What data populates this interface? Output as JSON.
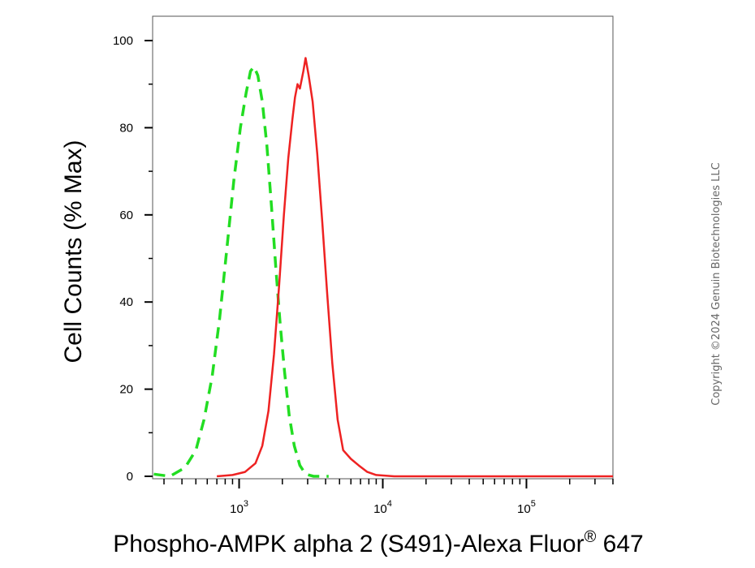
{
  "chart_data": {
    "type": "line",
    "xlabel": "Phospho-AMPK alpha 2 (S491)-Alexa Fluor",
    "xlabel_superscript": "®",
    "xlabel_suffix": " 647",
    "ylabel": "Cell Counts (% Max)",
    "x_scale": "log",
    "xlim": [
      250,
      400000
    ],
    "ylim": [
      0,
      100
    ],
    "y_ticks": [
      0,
      20,
      40,
      60,
      80,
      100
    ],
    "x_major_ticks": [
      {
        "value": 1000,
        "base": "10",
        "exp": "3"
      },
      {
        "value": 10000,
        "base": "10",
        "exp": "4"
      },
      {
        "value": 100000,
        "base": "10",
        "exp": "5"
      }
    ],
    "grid": false,
    "series": [
      {
        "style": "dashed",
        "color": "#22dd22",
        "points": [
          [
            255,
            0.5
          ],
          [
            330,
            0
          ],
          [
            420,
            2
          ],
          [
            500,
            6
          ],
          [
            570,
            13
          ],
          [
            650,
            23
          ],
          [
            730,
            36
          ],
          [
            820,
            52
          ],
          [
            920,
            68
          ],
          [
            1020,
            80
          ],
          [
            1120,
            88
          ],
          [
            1200,
            93
          ],
          [
            1270,
            94
          ],
          [
            1350,
            92
          ],
          [
            1450,
            86
          ],
          [
            1560,
            76
          ],
          [
            1680,
            62
          ],
          [
            1800,
            48
          ],
          [
            1930,
            35
          ],
          [
            2070,
            24
          ],
          [
            2230,
            14
          ],
          [
            2420,
            7
          ],
          [
            2650,
            2.5
          ],
          [
            2900,
            0.5
          ],
          [
            3300,
            0
          ],
          [
            4200,
            0
          ]
        ]
      },
      {
        "style": "solid",
        "color": "#ee2222",
        "points": [
          [
            700,
            0
          ],
          [
            900,
            0.3
          ],
          [
            1100,
            1
          ],
          [
            1300,
            3
          ],
          [
            1450,
            7
          ],
          [
            1600,
            15
          ],
          [
            1750,
            28
          ],
          [
            1900,
            44
          ],
          [
            2050,
            60
          ],
          [
            2200,
            73
          ],
          [
            2350,
            82
          ],
          [
            2450,
            87
          ],
          [
            2550,
            90
          ],
          [
            2650,
            89
          ],
          [
            2800,
            93
          ],
          [
            2900,
            96
          ],
          [
            3050,
            92
          ],
          [
            3250,
            86
          ],
          [
            3500,
            74
          ],
          [
            3800,
            58
          ],
          [
            4100,
            42
          ],
          [
            4450,
            26
          ],
          [
            4850,
            13
          ],
          [
            5300,
            6
          ],
          [
            6000,
            4
          ],
          [
            6800,
            2.5
          ],
          [
            7800,
            1
          ],
          [
            9000,
            0.3
          ],
          [
            12000,
            0
          ],
          [
            400000,
            0
          ]
        ]
      }
    ]
  },
  "copyright": "Copyright ©2024 Genuin Biotechnologies LLC"
}
